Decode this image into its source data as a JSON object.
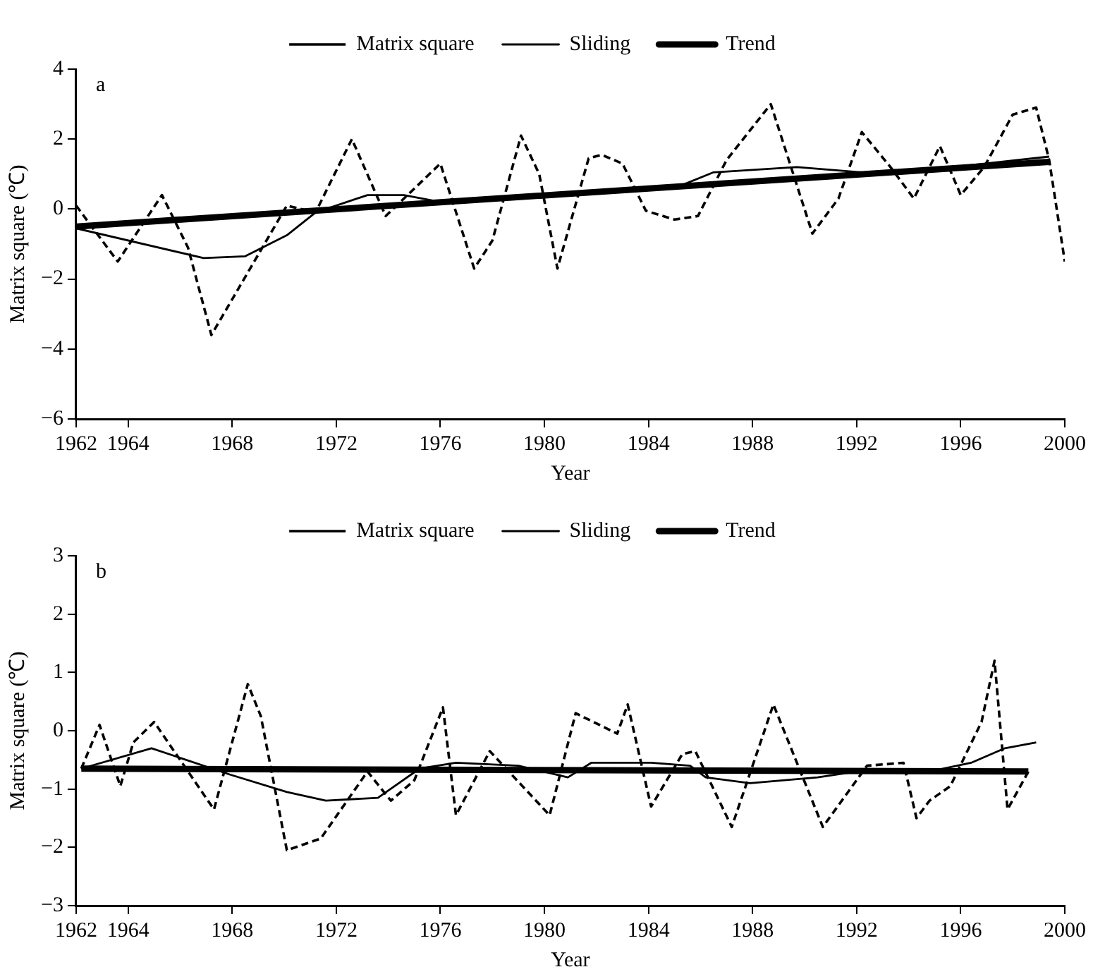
{
  "chart_data": [
    {
      "type": "line",
      "xlabel": "Year",
      "ylabel": "Matrix square (℃)",
      "annotations": [
        "a"
      ],
      "legend": "top",
      "grid": false,
      "marker": "none",
      "xlim": [
        1962,
        2000
      ],
      "xticks": [
        1962,
        1964,
        1968,
        1972,
        1976,
        1980,
        1984,
        1988,
        1992,
        1996,
        2000
      ],
      "ylim": [
        -6,
        4
      ],
      "yticks": [
        {
          "value": -6,
          "label": "−6"
        },
        {
          "value": -4,
          "label": "−4"
        },
        {
          "value": -2,
          "label": "−2"
        },
        0,
        2,
        4
      ],
      "series": [
        {
          "name": "Matrix square",
          "color": "#000000",
          "line_style": "dashed",
          "x": [
            1962.0,
            1963.6,
            1965.3,
            1966.3,
            1967.2,
            1970.1,
            1971.2,
            1972.6,
            1973.9,
            1976.0,
            1977.3,
            1978.0,
            1979.1,
            1979.8,
            1980.5,
            1981.7,
            1982.2,
            1983.0,
            1983.9,
            1985.0,
            1985.9,
            1987.0,
            1988.7,
            1990.3,
            1991.3,
            1992.2,
            1993.3,
            1994.2,
            1995.2,
            1996.0,
            1996.9,
            1998.0,
            1998.9,
            1999.4,
            2000.0
          ],
          "values": [
            0.1,
            -1.5,
            0.4,
            -1.1,
            -3.6,
            0.1,
            -0.1,
            2.0,
            -0.2,
            1.3,
            -1.7,
            -0.9,
            2.1,
            1.0,
            -1.7,
            1.45,
            1.55,
            1.3,
            -0.05,
            -0.3,
            -0.2,
            1.4,
            3.0,
            -0.7,
            0.3,
            2.2,
            1.2,
            0.3,
            1.8,
            0.4,
            1.2,
            2.7,
            2.9,
            1.4,
            -1.5
          ]
        },
        {
          "name": "Sliding",
          "color": "#000000",
          "line_style": "solid",
          "x": [
            1962.0,
            1966.9,
            1968.5,
            1970.1,
            1971.2,
            1973.2,
            1974.6,
            1976.0,
            1980.0,
            1985.0,
            1986.5,
            1989.7,
            1992.2,
            1993.3,
            1999.4
          ],
          "values": [
            -0.55,
            -1.4,
            -1.35,
            -0.75,
            -0.1,
            0.4,
            0.4,
            0.2,
            0.4,
            0.6,
            1.05,
            1.2,
            1.05,
            1.0,
            1.5
          ]
        },
        {
          "name": "Trend",
          "color": "#000000",
          "line_style": "solid",
          "x": [
            1962.0,
            1999.4
          ],
          "values": [
            -0.5,
            1.35
          ]
        }
      ]
    },
    {
      "type": "line",
      "xlabel": "Year",
      "ylabel": "Matrix square (℃)",
      "annotations": [
        "b"
      ],
      "legend": "top",
      "grid": false,
      "marker": "none",
      "xlim": [
        1962,
        2000
      ],
      "xticks": [
        1962,
        1964,
        1968,
        1972,
        1976,
        1980,
        1984,
        1988,
        1992,
        1996,
        2000
      ],
      "ylim": [
        -3,
        3
      ],
      "yticks": [
        {
          "value": -3,
          "label": "−3"
        },
        {
          "value": -2,
          "label": "−2"
        },
        {
          "value": -1,
          "label": "−1"
        },
        0,
        1,
        2,
        3
      ],
      "series": [
        {
          "name": "Matrix square",
          "color": "#000000",
          "line_style": "dashed",
          "x": [
            1962.2,
            1962.9,
            1963.7,
            1964.2,
            1965.0,
            1967.3,
            1968.6,
            1969.1,
            1970.1,
            1971.4,
            1973.2,
            1974.1,
            1975.0,
            1976.1,
            1976.6,
            1977.9,
            1980.2,
            1981.2,
            1982.8,
            1983.2,
            1984.1,
            1985.3,
            1985.8,
            1987.2,
            1988.8,
            1990.7,
            1992.4,
            1993.8,
            1994.3,
            1994.8,
            1995.6,
            1996.8,
            1997.3,
            1997.8,
            1998.6
          ],
          "values": [
            -0.65,
            0.1,
            -0.95,
            -0.2,
            0.15,
            -1.35,
            0.8,
            0.25,
            -2.05,
            -1.85,
            -0.7,
            -1.2,
            -0.85,
            0.4,
            -1.45,
            -0.35,
            -1.45,
            0.3,
            -0.05,
            0.45,
            -1.3,
            -0.4,
            -0.35,
            -1.65,
            0.45,
            -1.65,
            -0.6,
            -0.55,
            -1.5,
            -1.2,
            -0.95,
            0.15,
            1.2,
            -1.35,
            -0.7
          ]
        },
        {
          "name": "Sliding",
          "color": "#000000",
          "line_style": "solid",
          "x": [
            1962.2,
            1964.9,
            1967.9,
            1970.1,
            1971.6,
            1973.6,
            1975.2,
            1976.6,
            1979.0,
            1980.9,
            1981.8,
            1984.1,
            1985.6,
            1986.2,
            1987.9,
            1990.5,
            1992.0,
            1994.8,
            1996.4,
            1997.7,
            1998.9
          ],
          "values": [
            -0.65,
            -0.3,
            -0.75,
            -1.05,
            -1.2,
            -1.15,
            -0.65,
            -0.55,
            -0.6,
            -0.8,
            -0.55,
            -0.55,
            -0.6,
            -0.8,
            -0.9,
            -0.8,
            -0.7,
            -0.7,
            -0.55,
            -0.3,
            -0.2
          ]
        },
        {
          "name": "Trend",
          "color": "#000000",
          "line_style": "solid",
          "x": [
            1962.2,
            1998.6
          ],
          "values": [
            -0.65,
            -0.7
          ]
        }
      ]
    }
  ]
}
